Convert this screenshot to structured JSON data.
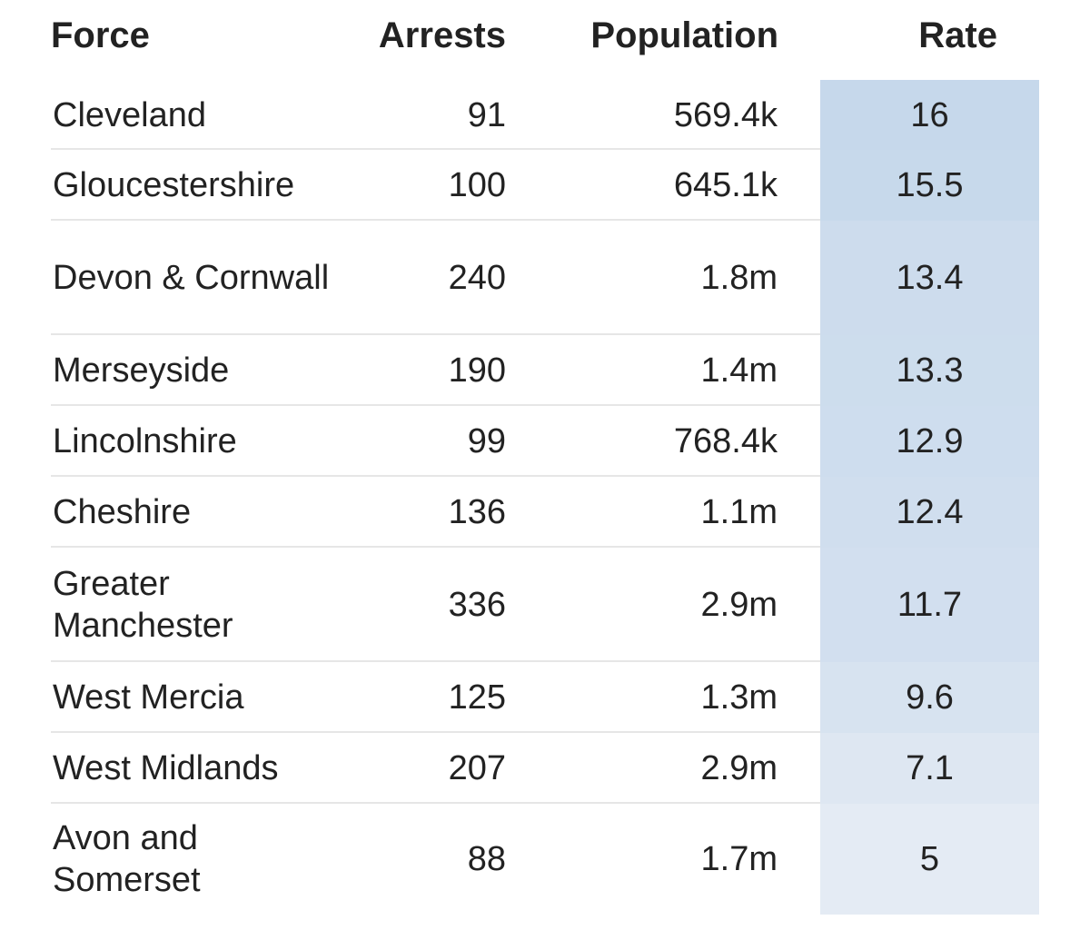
{
  "chart_data": {
    "type": "table",
    "columns": [
      "Force",
      "Arrests",
      "Population",
      "Rate"
    ],
    "rows": [
      {
        "force": "Cleveland",
        "arrests": "91",
        "population": "569.4k",
        "rate": "16",
        "rate_value": 16
      },
      {
        "force": "Gloucestershire",
        "arrests": "100",
        "population": "645.1k",
        "rate": "15.5",
        "rate_value": 15.5
      },
      {
        "force": "Devon & Cornwall",
        "arrests": "240",
        "population": "1.8m",
        "rate": "13.4",
        "rate_value": 13.4
      },
      {
        "force": "Merseyside",
        "arrests": "190",
        "population": "1.4m",
        "rate": "13.3",
        "rate_value": 13.3
      },
      {
        "force": "Lincolnshire",
        "arrests": "99",
        "population": "768.4k",
        "rate": "12.9",
        "rate_value": 12.9
      },
      {
        "force": "Cheshire",
        "arrests": "136",
        "population": "1.1m",
        "rate": "12.4",
        "rate_value": 12.4
      },
      {
        "force": "Greater Manchester",
        "arrests": "336",
        "population": "2.9m",
        "rate": "11.7",
        "rate_value": 11.7
      },
      {
        "force": "West Mercia",
        "arrests": "125",
        "population": "1.3m",
        "rate": "9.6",
        "rate_value": 9.6
      },
      {
        "force": "West Midlands",
        "arrests": "207",
        "population": "2.9m",
        "rate": "7.1",
        "rate_value": 7.1
      },
      {
        "force": "Avon and Somerset",
        "arrests": "88",
        "population": "1.7m",
        "rate": "5",
        "rate_value": 5
      }
    ],
    "heatmap_column": "Rate",
    "colors": {
      "rate_high": "#c6d8eb",
      "rate_low": "#e4ebf4",
      "divider": "#e6e6e6",
      "text": "#222222"
    }
  }
}
